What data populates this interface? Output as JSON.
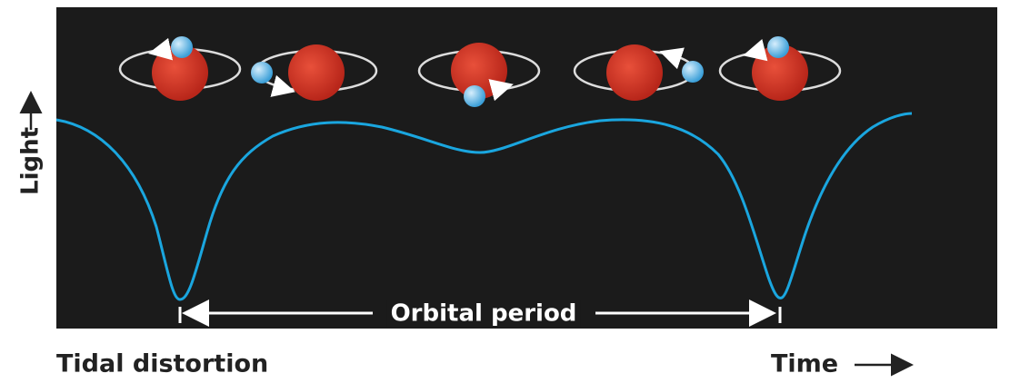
{
  "axis": {
    "y_label": "Light",
    "x_label": "Time"
  },
  "annotations": {
    "period": "Orbital period",
    "caption": "Tidal distortion"
  }
}
